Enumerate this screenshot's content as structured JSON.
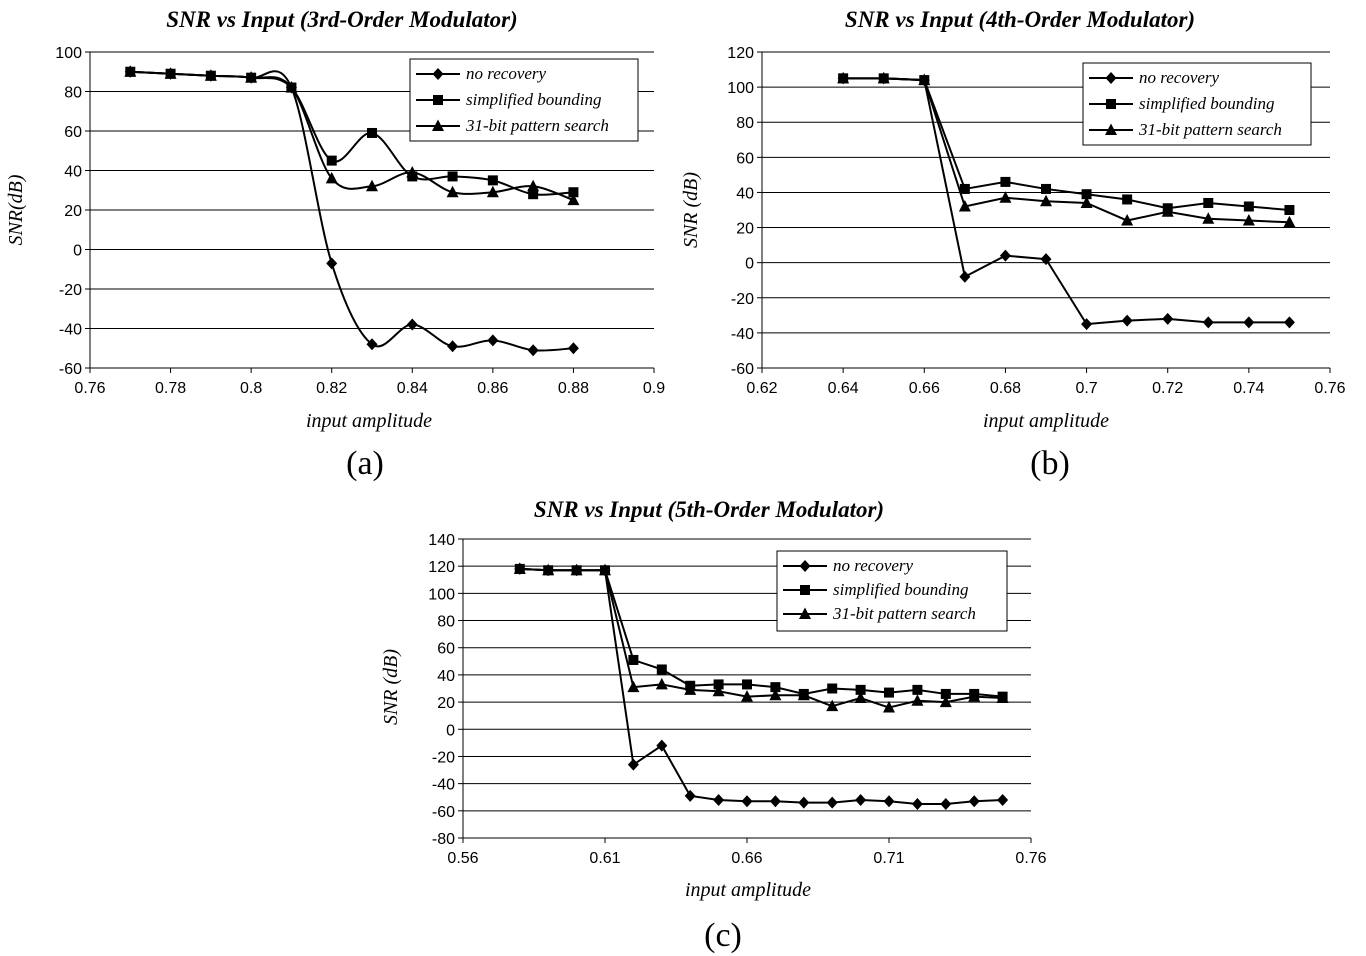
{
  "chart_data": [
    {
      "type": "line",
      "title": "SNR vs Input (3rd-Order Modulator)",
      "xlabel": "input amplitude",
      "ylabel": "SNR(dB)",
      "panel_label": "(a)",
      "xlim": [
        0.76,
        0.9
      ],
      "ylim": [
        -60,
        100
      ],
      "xticks": [
        0.76,
        0.78,
        0.8,
        0.82,
        0.84,
        0.86,
        0.88,
        0.9
      ],
      "xtick_labels": [
        "0.76",
        "0.78",
        "0.8",
        "0.82",
        "0.84",
        "0.86",
        "0.88",
        "0.9"
      ],
      "yticks": [
        -60,
        -40,
        -20,
        0,
        20,
        40,
        60,
        80,
        100
      ],
      "ytick_labels": [
        "-60",
        "-40",
        "-20",
        "0",
        "20",
        "40",
        "60",
        "80",
        "100"
      ],
      "grid": "horizontal",
      "smooth": true,
      "legend_position": "top-right",
      "series": [
        {
          "name": "no recovery",
          "marker": "diamond",
          "x": [
            0.77,
            0.78,
            0.79,
            0.8,
            0.81,
            0.82,
            0.83,
            0.84,
            0.85,
            0.86,
            0.87,
            0.88
          ],
          "y": [
            90,
            89,
            88,
            87,
            82,
            -7,
            -48,
            -38,
            -49,
            -46,
            -51,
            -50
          ]
        },
        {
          "name": "simplified bounding",
          "marker": "square",
          "x": [
            0.77,
            0.78,
            0.79,
            0.8,
            0.81,
            0.82,
            0.83,
            0.84,
            0.85,
            0.86,
            0.87,
            0.88
          ],
          "y": [
            90,
            89,
            88,
            87,
            82,
            45,
            59,
            37,
            37,
            35,
            28,
            29
          ]
        },
        {
          "name": "31-bit pattern search",
          "marker": "triangle",
          "x": [
            0.77,
            0.78,
            0.79,
            0.8,
            0.81,
            0.82,
            0.83,
            0.84,
            0.85,
            0.86,
            0.87,
            0.88
          ],
          "y": [
            90,
            89,
            88,
            87,
            82,
            36,
            32,
            39,
            29,
            29,
            32,
            25
          ]
        }
      ]
    },
    {
      "type": "line",
      "title": "SNR vs Input (4th-Order Modulator)",
      "xlabel": "input amplitude",
      "ylabel": "SNR (dB)",
      "panel_label": "(b)",
      "xlim": [
        0.62,
        0.76
      ],
      "ylim": [
        -60,
        120
      ],
      "xticks": [
        0.62,
        0.64,
        0.66,
        0.68,
        0.7,
        0.72,
        0.74,
        0.76
      ],
      "xtick_labels": [
        "0.62",
        "0.64",
        "0.66",
        "0.68",
        "0.7",
        "0.72",
        "0.74",
        "0.76"
      ],
      "yticks": [
        -60,
        -40,
        -20,
        0,
        20,
        40,
        60,
        80,
        100,
        120
      ],
      "ytick_labels": [
        "-60",
        "-40",
        "-20",
        "0",
        "20",
        "40",
        "60",
        "80",
        "100",
        "120"
      ],
      "grid": "horizontal",
      "smooth": false,
      "legend_position": "top-right",
      "series": [
        {
          "name": "no recovery",
          "marker": "diamond",
          "x": [
            0.64,
            0.65,
            0.66,
            0.67,
            0.68,
            0.69,
            0.7,
            0.71,
            0.72,
            0.73,
            0.74,
            0.75
          ],
          "y": [
            105,
            105,
            104,
            -8,
            4,
            2,
            -35,
            -33,
            -32,
            -34,
            -34,
            -34
          ]
        },
        {
          "name": "simplified bounding",
          "marker": "square",
          "x": [
            0.64,
            0.65,
            0.66,
            0.67,
            0.68,
            0.69,
            0.7,
            0.71,
            0.72,
            0.73,
            0.74,
            0.75
          ],
          "y": [
            105,
            105,
            104,
            42,
            46,
            42,
            39,
            36,
            31,
            34,
            32,
            30
          ]
        },
        {
          "name": "31-bit pattern search",
          "marker": "triangle",
          "x": [
            0.64,
            0.65,
            0.66,
            0.67,
            0.68,
            0.69,
            0.7,
            0.71,
            0.72,
            0.73,
            0.74,
            0.75
          ],
          "y": [
            105,
            105,
            104,
            32,
            37,
            35,
            34,
            24,
            29,
            25,
            24,
            23
          ]
        }
      ]
    },
    {
      "type": "line",
      "title": "SNR vs Input (5th-Order Modulator)",
      "xlabel": "input amplitude",
      "ylabel": "SNR (dB)",
      "panel_label": "(c)",
      "xlim": [
        0.56,
        0.76
      ],
      "ylim": [
        -80,
        140
      ],
      "xticks": [
        0.56,
        0.61,
        0.66,
        0.71,
        0.76
      ],
      "xtick_labels": [
        "0.56",
        "0.61",
        "0.66",
        "0.71",
        "0.76"
      ],
      "yticks": [
        -80,
        -60,
        -40,
        -20,
        0,
        20,
        40,
        60,
        80,
        100,
        120,
        140
      ],
      "ytick_labels": [
        "-80",
        "-60",
        "-40",
        "-20",
        "0",
        "20",
        "40",
        "60",
        "80",
        "100",
        "120",
        "140"
      ],
      "grid": "horizontal",
      "smooth": false,
      "legend_position": "top-right",
      "series": [
        {
          "name": "no recovery",
          "marker": "diamond",
          "x": [
            0.58,
            0.59,
            0.6,
            0.61,
            0.62,
            0.63,
            0.64,
            0.65,
            0.66,
            0.67,
            0.68,
            0.69,
            0.7,
            0.71,
            0.72,
            0.73,
            0.74,
            0.75
          ],
          "y": [
            118,
            117,
            117,
            117,
            -26,
            -12,
            -49,
            -52,
            -53,
            -53,
            -54,
            -54,
            -52,
            -53,
            -55,
            -55,
            -53,
            -52
          ]
        },
        {
          "name": "simplified bounding",
          "marker": "square",
          "x": [
            0.58,
            0.59,
            0.6,
            0.61,
            0.62,
            0.63,
            0.64,
            0.65,
            0.66,
            0.67,
            0.68,
            0.69,
            0.7,
            0.71,
            0.72,
            0.73,
            0.74,
            0.75
          ],
          "y": [
            118,
            117,
            117,
            117,
            51,
            44,
            32,
            33,
            33,
            31,
            26,
            30,
            29,
            27,
            29,
            26,
            26,
            24
          ]
        },
        {
          "name": "31-bit pattern search",
          "marker": "triangle",
          "x": [
            0.58,
            0.59,
            0.6,
            0.61,
            0.62,
            0.63,
            0.64,
            0.65,
            0.66,
            0.67,
            0.68,
            0.69,
            0.7,
            0.71,
            0.72,
            0.73,
            0.74,
            0.75
          ],
          "y": [
            118,
            117,
            117,
            117,
            31,
            33,
            29,
            28,
            24,
            25,
            25,
            17,
            23,
            16,
            21,
            20,
            24,
            23
          ]
        }
      ]
    }
  ]
}
